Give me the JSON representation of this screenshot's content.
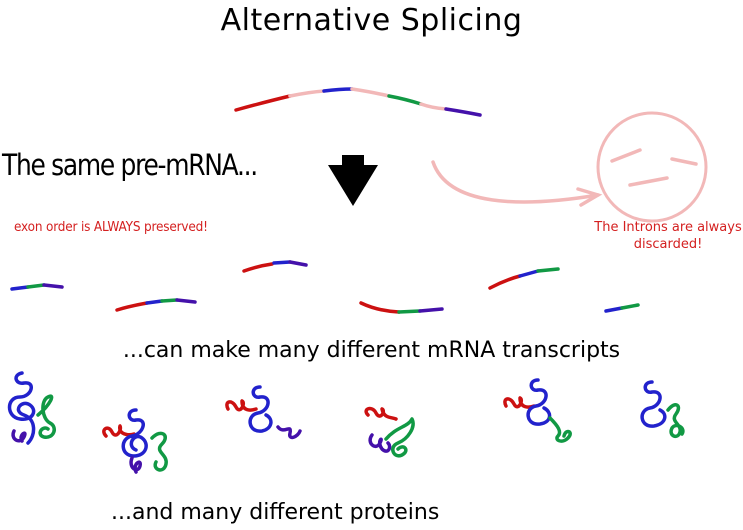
{
  "title": "Alternative Splicing",
  "labels": {
    "same_pre_mrna": "The same pre-mRNA...",
    "exon_order": "exon order is ALWAYS preserved!",
    "introns_discarded": "The Introns are always discarded!",
    "many_mrna": "...can make many different mRNA transcripts",
    "many_proteins": "...and many different proteins"
  },
  "colors": {
    "exon_red": "#cc1111",
    "exon_blue": "#2222cc",
    "exon_green": "#119944",
    "exon_purple": "#4411aa",
    "intron_pink": "#f2b8b8",
    "annotation_red": "#d42020"
  }
}
